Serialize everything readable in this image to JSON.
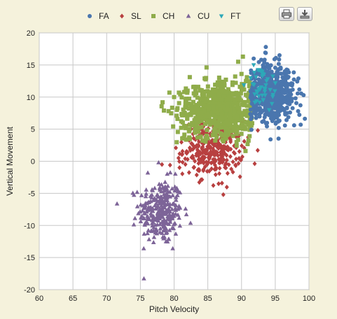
{
  "toolbar": {
    "print_icon": "printer-icon",
    "download_icon": "download-icon"
  },
  "colors": {
    "background": "#f5f2dc",
    "plot_bg": "#ffffff",
    "grid": "#c8c8c8"
  },
  "chart_data": {
    "type": "scatter",
    "title": "",
    "xlabel": "Pitch Velocity",
    "ylabel": "Vertical Movement",
    "xlim": [
      60,
      100
    ],
    "ylim": [
      -20,
      20
    ],
    "xticks": [
      "60",
      "65",
      "70",
      "75",
      "80",
      "85",
      "90",
      "95",
      "100"
    ],
    "yticks": [
      "20",
      "15",
      "10",
      "5",
      "0",
      "-5",
      "-10",
      "-15",
      "-20"
    ],
    "grid": true,
    "legend_position": "top-center",
    "series": [
      {
        "name": "FA",
        "color": "#4a76ae",
        "marker": "circle",
        "cluster": {
          "x_mean": 94.5,
          "x_sd": 1.7,
          "y_mean": 10.6,
          "y_sd": 2.2,
          "count": 600,
          "x_min": 91.3
        },
        "points": [
          [
            93.6,
            17.8
          ],
          [
            99.2,
            10.3
          ],
          [
            94.3,
            3.4
          ],
          [
            97.8,
            5.6
          ],
          [
            91.8,
            16.0
          ]
        ]
      },
      {
        "name": "SL",
        "color": "#b84040",
        "marker": "diamond",
        "cluster": {
          "x_mean": 85.8,
          "x_sd": 2.2,
          "y_mean": 2.0,
          "y_sd": 2.1,
          "count": 330
        },
        "points": [
          [
            80.8,
            -1.0
          ],
          [
            87.3,
            -5.2
          ],
          [
            86.6,
            -3.5
          ],
          [
            87.1,
            -3.4
          ],
          [
            79.4,
            -0.6
          ],
          [
            78.2,
            -0.5
          ]
        ]
      },
      {
        "name": "CH",
        "color": "#8fac4a",
        "marker": "square",
        "cluster": {
          "x_mean": 86.5,
          "x_sd": 3.0,
          "y_mean": 8.2,
          "y_sd": 2.2,
          "count": 650,
          "x_max": 91.6
        },
        "points": [
          [
            80.0,
            10.0
          ],
          [
            80.5,
            6.6
          ],
          [
            82.0,
            11.0
          ],
          [
            90.2,
            16.3
          ],
          [
            89.5,
            15.5
          ],
          [
            81.5,
            5.5
          ]
        ]
      },
      {
        "name": "CU",
        "color": "#7d6498",
        "marker": "triangle",
        "cluster": {
          "x_mean": 78.0,
          "x_sd": 1.6,
          "y_mean": -7.8,
          "y_sd": 2.5,
          "count": 280
        },
        "points": [
          [
            79.8,
            -13.6
          ],
          [
            78.8,
            -12.5
          ],
          [
            76.1,
            -1.8
          ],
          [
            77.7,
            -0.2
          ],
          [
            74.2,
            -8.9
          ]
        ]
      },
      {
        "name": "FT",
        "color": "#2ca8b8",
        "marker": "triangle-down",
        "cluster": {
          "x_mean": 92.8,
          "x_sd": 1.1,
          "y_mean": 12.0,
          "y_sd": 1.8,
          "count": 40
        },
        "points": [
          [
            91.8,
            15.0
          ],
          [
            93.0,
            13.8
          ],
          [
            93.5,
            10.3
          ],
          [
            94.1,
            8.0
          ]
        ]
      }
    ]
  }
}
